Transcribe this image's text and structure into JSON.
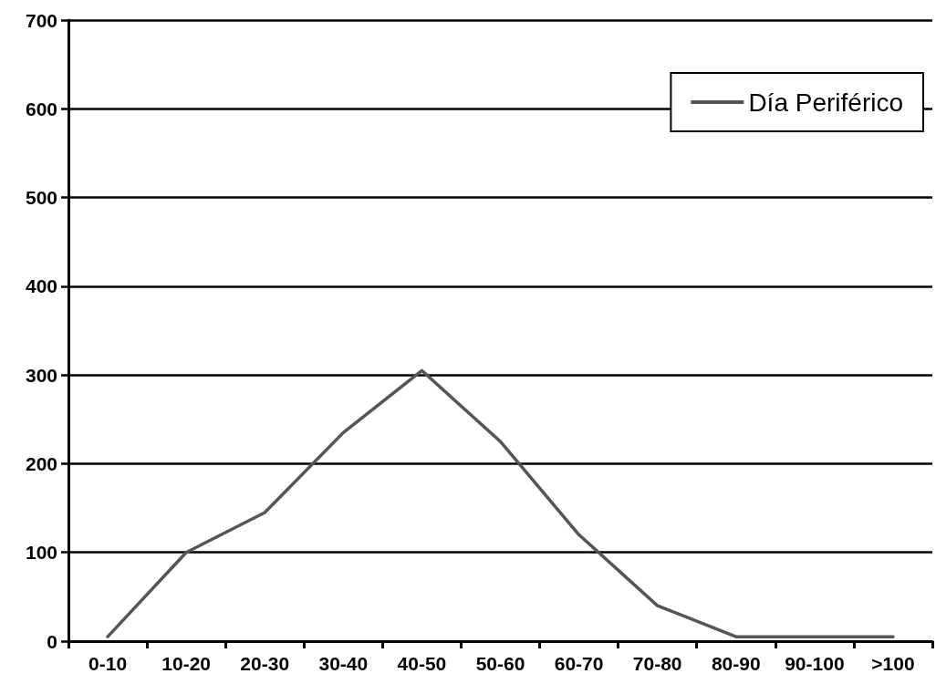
{
  "chart_data": {
    "type": "line",
    "categories": [
      "0-10",
      "10-20",
      "20-30",
      "30-40",
      "40-50",
      "50-60",
      "60-70",
      "70-80",
      "80-90",
      "90-100",
      ">100"
    ],
    "series": [
      {
        "name": "Día Periférico",
        "color": "#555555",
        "values": [
          5,
          100,
          145,
          235,
          305,
          225,
          120,
          40,
          5,
          5,
          5
        ]
      }
    ],
    "ylim": [
      0,
      700
    ],
    "yticks": [
      0,
      100,
      200,
      300,
      400,
      500,
      600,
      700
    ],
    "grid": "y",
    "legend": "top right"
  }
}
